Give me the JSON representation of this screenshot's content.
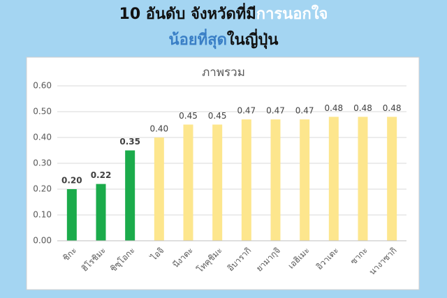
{
  "headline": {
    "line1": [
      "10 อันดับ จังหวัดที่มี",
      "การนอกใจ"
    ],
    "line2": [
      "น้อยที่สุด",
      "ในญี่ปุ่น"
    ]
  },
  "chart_data": {
    "type": "bar",
    "title": "ภาพรวม",
    "categories": [
      "ชิกะ",
      "ฮิโรชิมะ",
      "ชิซุโอกะ",
      "ไอจิ",
      "นีงาตะ",
      "โทคุชิมะ",
      "อิบารากิ",
      "ยามากุจิ",
      "เอฮิเมะ",
      "อิวาเตะ",
      "ซากะ",
      "นางาซากิ"
    ],
    "values": [
      0.2,
      0.22,
      0.35,
      0.4,
      0.45,
      0.45,
      0.47,
      0.47,
      0.47,
      0.48,
      0.48,
      0.48
    ],
    "value_labels": [
      "0.20",
      "0.22",
      "0.35",
      "0.40",
      "0.45",
      "0.45",
      "0.47",
      "0.47",
      "0.47",
      "0.48",
      "0.48",
      "0.48"
    ],
    "colors": [
      "#1bab4b",
      "#1bab4b",
      "#1bab4b",
      "#fde68d",
      "#fde68d",
      "#fde68d",
      "#fde68d",
      "#fde68d",
      "#fde68d",
      "#fde68d",
      "#fde68d",
      "#fde68d"
    ],
    "ylim": [
      0,
      0.6
    ],
    "yticks": [
      {
        "value": 0,
        "label": "0.00"
      },
      {
        "value": 0.1,
        "label": "0.10"
      },
      {
        "value": 0.2,
        "label": "0.20"
      },
      {
        "value": 0.3,
        "label": "0.30"
      },
      {
        "value": 0.4,
        "label": "0.40"
      },
      {
        "value": 0.5,
        "label": "0.50"
      },
      {
        "value": 0.6,
        "label": "0.60"
      }
    ],
    "grid": true
  }
}
